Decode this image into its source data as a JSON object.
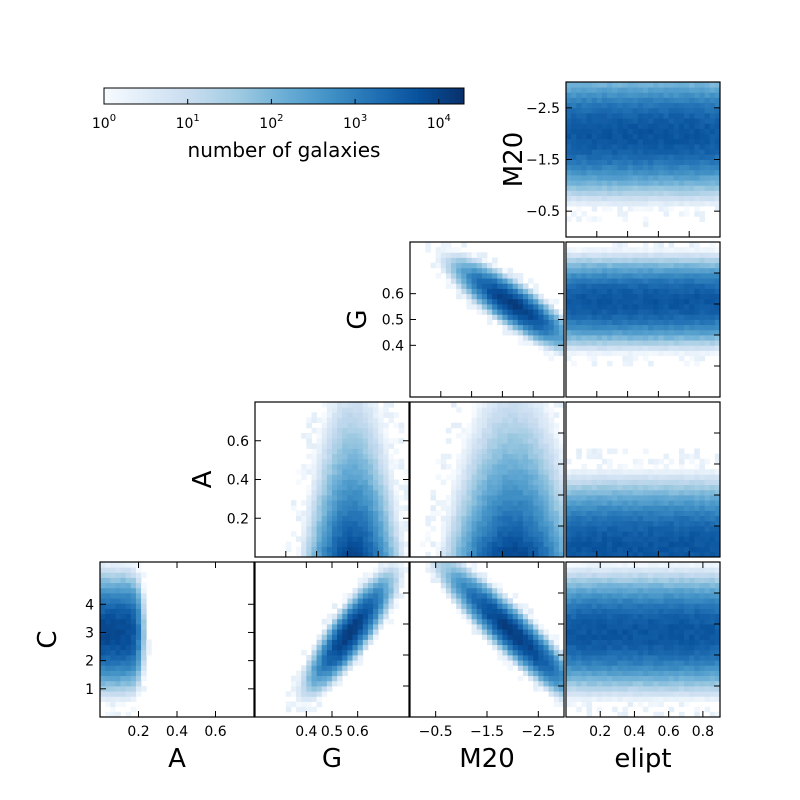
{
  "colormap": {
    "name": "Blues",
    "low_color": "#f7fbff",
    "high_color": "#08306b"
  },
  "colorbar": {
    "label": "number of galaxies",
    "scale": "log",
    "range": [
      1,
      20000
    ],
    "ticks": [
      {
        "value": 1,
        "base": "10",
        "exp": "0"
      },
      {
        "value": 10,
        "base": "10",
        "exp": "1"
      },
      {
        "value": 100,
        "base": "10",
        "exp": "2"
      },
      {
        "value": 1000,
        "base": "10",
        "exp": "3"
      },
      {
        "value": 10000,
        "base": "10",
        "exp": "4"
      }
    ]
  },
  "chart_data": [
    {
      "type": "heatmap",
      "id": "m20-elipt",
      "xlabel": "",
      "ylabel": "M20",
      "xlim": [
        0,
        0.9
      ],
      "ylim": [
        0,
        -3
      ],
      "x_ticks": [],
      "y_ticks": [
        -2.5,
        -1.5,
        -0.5
      ],
      "y_tick_labels": [
        "−2.5",
        "−1.5",
        "−0.5"
      ],
      "density": {
        "shape": "band",
        "x_center": 0.45,
        "x_width": 0.5,
        "y_center": -2.0,
        "y_width": 0.35,
        "peak": 5000
      }
    },
    {
      "type": "heatmap",
      "id": "g-m20",
      "xlabel": "",
      "ylabel": "G",
      "xlim": [
        0,
        -3
      ],
      "ylim": [
        0.2,
        0.8
      ],
      "x_ticks": [],
      "y_ticks": [
        0.4,
        0.5,
        0.6
      ],
      "y_tick_labels": [
        "0.4",
        "0.5",
        "0.6"
      ],
      "density": {
        "shape": "correlated",
        "x_center": -2.0,
        "y_center": 0.56,
        "x_width": 0.35,
        "y_width": 0.05,
        "rho": 0.85,
        "peak": 12000
      }
    },
    {
      "type": "heatmap",
      "id": "g-elipt",
      "xlabel": "",
      "ylabel": "",
      "xlim": [
        0,
        0.9
      ],
      "ylim": [
        0.2,
        0.8
      ],
      "x_ticks": [],
      "y_ticks": [],
      "density": {
        "shape": "band",
        "x_center": 0.45,
        "x_width": 0.5,
        "y_center": 0.57,
        "y_width": 0.05,
        "peak": 5000
      }
    },
    {
      "type": "heatmap",
      "id": "a-g",
      "xlabel": "",
      "ylabel": "A",
      "xlim": [
        0.2,
        0.8
      ],
      "ylim": [
        0,
        0.8
      ],
      "x_ticks": [],
      "y_ticks": [
        0.2,
        0.4,
        0.6
      ],
      "y_tick_labels": [
        "0.2",
        "0.4",
        "0.6"
      ],
      "density": {
        "shape": "floor",
        "x_center": 0.58,
        "x_width": 0.05,
        "y_center": 0.03,
        "y_width": 0.1,
        "peak": 8000
      }
    },
    {
      "type": "heatmap",
      "id": "a-m20",
      "xlabel": "",
      "ylabel": "",
      "xlim": [
        0,
        -3
      ],
      "ylim": [
        0,
        0.8
      ],
      "x_ticks": [],
      "y_ticks": [],
      "density": {
        "shape": "floor",
        "x_center": -2.0,
        "x_width": 0.35,
        "y_center": 0.03,
        "y_width": 0.1,
        "peak": 8000
      }
    },
    {
      "type": "heatmap",
      "id": "a-elipt",
      "xlabel": "",
      "ylabel": "",
      "xlim": [
        0,
        0.9
      ],
      "ylim": [
        0,
        0.8
      ],
      "x_ticks": [],
      "y_ticks": [],
      "density": {
        "shape": "band",
        "x_center": 0.45,
        "x_width": 0.5,
        "y_center": 0.05,
        "y_width": 0.1,
        "peak": 5000
      }
    },
    {
      "type": "heatmap",
      "id": "c-a",
      "xlabel": "A",
      "ylabel": "C",
      "xlim": [
        0,
        0.8
      ],
      "ylim": [
        0,
        5.5
      ],
      "x_ticks": [
        0.2,
        0.4,
        0.6
      ],
      "y_ticks": [
        1,
        2,
        3,
        4
      ],
      "x_tick_labels": [
        "0.2",
        "0.4",
        "0.6"
      ],
      "y_tick_labels": [
        "1",
        "2",
        "3",
        "4"
      ],
      "density": {
        "shape": "band",
        "x_center": 0.05,
        "x_width": 0.12,
        "y_center": 3.0,
        "y_width": 0.6,
        "peak": 8000
      }
    },
    {
      "type": "heatmap",
      "id": "c-g",
      "xlabel": "G",
      "ylabel": "",
      "xlim": [
        0.2,
        0.8
      ],
      "ylim": [
        0,
        5.5
      ],
      "x_ticks": [
        0.4,
        0.5,
        0.6
      ],
      "y_ticks": [],
      "x_tick_labels": [
        "0.4",
        "0.5",
        "0.6"
      ],
      "density": {
        "shape": "correlated",
        "x_center": 0.57,
        "y_center": 3.0,
        "x_width": 0.05,
        "y_width": 0.6,
        "rho": 0.85,
        "peak": 12000
      }
    },
    {
      "type": "heatmap",
      "id": "c-m20",
      "xlabel": "M20",
      "ylabel": "",
      "xlim": [
        0,
        -3
      ],
      "ylim": [
        0,
        5.5
      ],
      "x_ticks": [
        -0.5,
        -1.5,
        -2.5
      ],
      "y_ticks": [],
      "x_tick_labels": [
        "−0.5",
        "−1.5",
        "−2.5"
      ],
      "density": {
        "shape": "correlated",
        "x_center": -2.0,
        "y_center": 3.0,
        "x_width": 0.4,
        "y_width": 0.7,
        "rho": 0.92,
        "peak": 12000
      }
    },
    {
      "type": "heatmap",
      "id": "c-elipt",
      "xlabel": "elipt",
      "ylabel": "",
      "xlim": [
        0,
        0.9
      ],
      "ylim": [
        0,
        5.5
      ],
      "x_ticks": [
        0.2,
        0.4,
        0.6,
        0.8
      ],
      "y_ticks": [],
      "x_tick_labels": [
        "0.2",
        "0.4",
        "0.6",
        "0.8"
      ],
      "density": {
        "shape": "band",
        "x_center": 0.45,
        "x_width": 0.5,
        "y_center": 3.0,
        "y_width": 0.6,
        "peak": 5000
      }
    }
  ]
}
